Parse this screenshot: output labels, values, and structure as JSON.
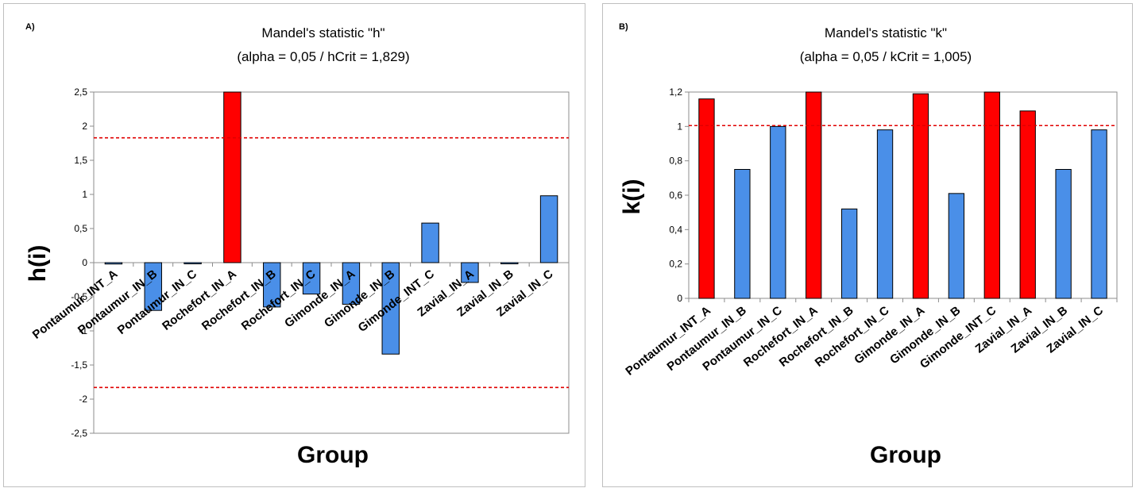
{
  "chart_data": [
    {
      "type": "bar",
      "panel_label": "A)",
      "title": "Mandel's statistic \"h\"",
      "subtitle": "(alpha = 0,05 / hCrit = 1,829)",
      "xlabel": "Group",
      "ylabel": "h(i)",
      "ylim": [
        -2.5,
        2.5
      ],
      "yticks": [
        "-2,5",
        "-2",
        "-1,5",
        "-1",
        "-0,5",
        "0",
        "0,5",
        "1",
        "1,5",
        "2",
        "2,5"
      ],
      "ytick_values": [
        -2.5,
        -2,
        -1.5,
        -1,
        -0.5,
        0,
        0.5,
        1,
        1.5,
        2,
        2.5
      ],
      "categories": [
        "Pontaumur_INT_A",
        "Pontaumur_IN_B",
        "Pontaumur_IN_C",
        "Rochefort_IN_A",
        "Rochefort_IN_B",
        "Rochefort_IN_C",
        "Gimonde_IN_A",
        "Gimonde_IN_B",
        "Gimonde_INT_C",
        "Zavial_IN_A",
        "Zavial_IN_B",
        "Zavial_IN_C"
      ],
      "values": [
        -0.02,
        -0.7,
        -0.01,
        2.5,
        -0.65,
        -0.46,
        -0.61,
        -1.34,
        0.58,
        -0.29,
        -0.01,
        0.98
      ],
      "critical_lines": [
        1.829,
        -1.829
      ],
      "colors": {
        "normal": "#4a8fe8",
        "flagged": "#ff0000",
        "critical": "#e00000"
      }
    },
    {
      "type": "bar",
      "panel_label": "B)",
      "title": "Mandel's statistic \"k\"",
      "subtitle": "(alpha = 0,05 / kCrit = 1,005)",
      "xlabel": "Group",
      "ylabel": "k(i)",
      "ylim": [
        0,
        1.2
      ],
      "yticks": [
        "0",
        "0,2",
        "0,4",
        "0,6",
        "0,8",
        "1",
        "1,2"
      ],
      "ytick_values": [
        0,
        0.2,
        0.4,
        0.6,
        0.8,
        1,
        1.2
      ],
      "categories": [
        "Pontaumur_INT_A",
        "Pontaumur_IN_B",
        "Pontaumur_IN_C",
        "Rochefort_IN_A",
        "Rochefort_IN_B",
        "Rochefort_IN_C",
        "Gimonde_IN_A",
        "Gimonde_IN_B",
        "Gimonde_INT_C",
        "Zavial_IN_A",
        "Zavial_IN_B",
        "Zavial_IN_C"
      ],
      "values": [
        1.16,
        0.75,
        1.0,
        1.2,
        0.52,
        0.98,
        1.19,
        0.61,
        1.2,
        1.09,
        0.75,
        0.98
      ],
      "critical_lines": [
        1.005
      ],
      "colors": {
        "normal": "#4a8fe8",
        "flagged": "#ff0000",
        "critical": "#e00000"
      }
    }
  ]
}
